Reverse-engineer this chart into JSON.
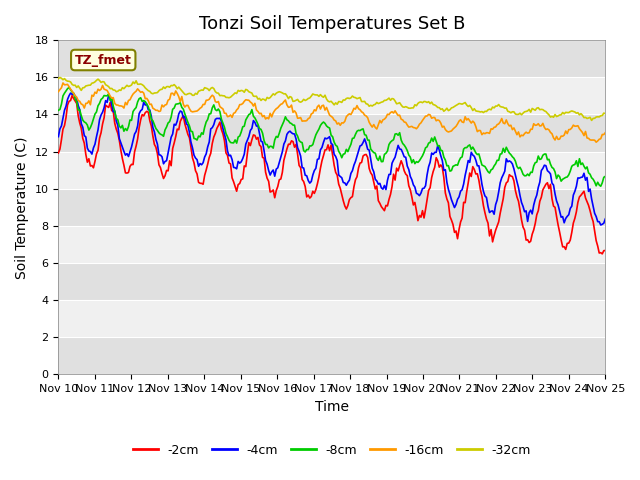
{
  "title": "Tonzi Soil Temperatures Set B",
  "xlabel": "Time",
  "ylabel": "Soil Temperature (C)",
  "ylim": [
    0,
    18
  ],
  "yticks": [
    0,
    2,
    4,
    6,
    8,
    10,
    12,
    14,
    16,
    18
  ],
  "x_tick_labels": [
    "Nov 10",
    "Nov 11",
    "Nov 12",
    "Nov 13",
    "Nov 14",
    "Nov 15",
    "Nov 16",
    "Nov 17",
    "Nov 18",
    "Nov 19",
    "Nov 20",
    "Nov 21",
    "Nov 22",
    "Nov 23",
    "Nov 24",
    "Nov 25"
  ],
  "legend_label": "TZ_fmet",
  "series_labels": [
    "-2cm",
    "-4cm",
    "-8cm",
    "-16cm",
    "-32cm"
  ],
  "series_colors": [
    "#ff0000",
    "#0000ff",
    "#00cc00",
    "#ff9900",
    "#cccc00"
  ],
  "background_color": "#ffffff",
  "plot_bg_color": "#e8e8e8",
  "band_color1": "#e0e0e0",
  "band_color2": "#f0f0f0",
  "title_fontsize": 13,
  "axis_fontsize": 10,
  "tick_fontsize": 8
}
